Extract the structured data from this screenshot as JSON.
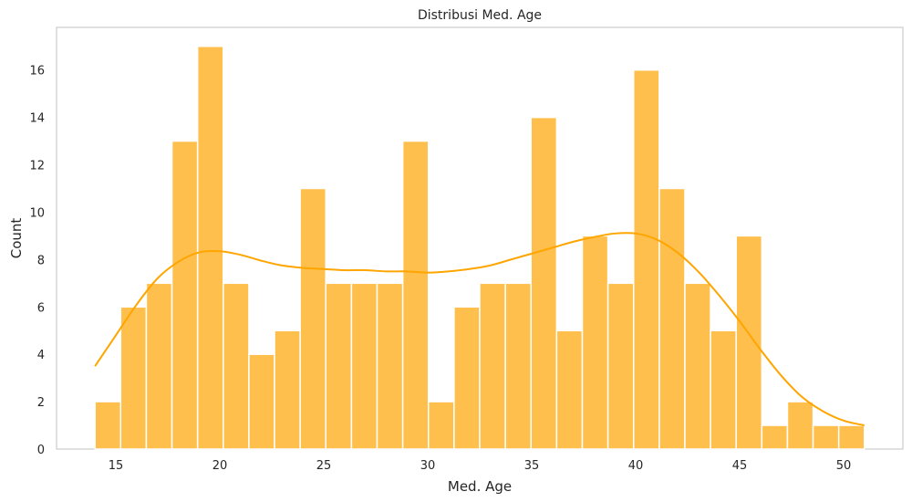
{
  "chart_data": {
    "type": "bar",
    "title": "Distribusi Med. Age",
    "xlabel": "Med. Age",
    "ylabel": "Count",
    "xlim": [
      12.15,
      52.85
    ],
    "ylim": [
      0,
      17.8
    ],
    "bins": {
      "start": 14.0,
      "end": 51.0,
      "count": 30
    },
    "values": [
      2,
      6,
      7,
      13,
      17,
      7,
      4,
      5,
      11,
      7,
      7,
      7,
      13,
      2,
      6,
      7,
      7,
      14,
      5,
      9,
      7,
      16,
      11,
      7,
      5,
      9,
      1,
      2,
      1,
      1
    ],
    "xticks": [
      15,
      20,
      25,
      30,
      35,
      40,
      45,
      50
    ],
    "yticks": [
      0,
      2,
      4,
      6,
      8,
      10,
      12,
      14,
      16
    ],
    "grid": false,
    "colors": {
      "bar": "#ffbf4c",
      "kde": "#ffa500",
      "frame": "#cccccc"
    },
    "kde": {
      "x": [
        14,
        15,
        16,
        17,
        18,
        19,
        20,
        21,
        22,
        23,
        24,
        25,
        26,
        27,
        28,
        29,
        30,
        31,
        32,
        33,
        34,
        35,
        36,
        37,
        38,
        39,
        40,
        41,
        42,
        43,
        44,
        45,
        46,
        47,
        48,
        49,
        50,
        51
      ],
      "y": [
        3.5,
        4.8,
        6.1,
        7.2,
        7.9,
        8.3,
        8.35,
        8.2,
        7.95,
        7.75,
        7.65,
        7.6,
        7.55,
        7.55,
        7.5,
        7.5,
        7.45,
        7.5,
        7.6,
        7.75,
        8.0,
        8.25,
        8.5,
        8.75,
        8.95,
        9.1,
        9.1,
        8.85,
        8.3,
        7.5,
        6.5,
        5.4,
        4.2,
        3.1,
        2.2,
        1.6,
        1.2,
        1.0
      ]
    }
  }
}
